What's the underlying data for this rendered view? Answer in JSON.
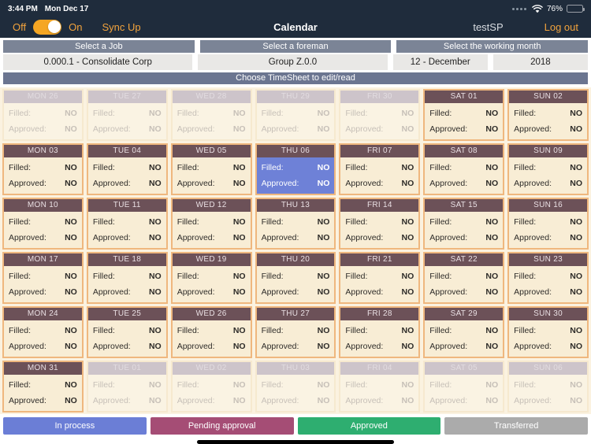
{
  "status_bar": {
    "time": "3:44 PM",
    "date": "Mon Dec 17",
    "battery_percent": "76%"
  },
  "nav_bar": {
    "off_label": "Off",
    "on_label": "On",
    "sync_label": "Sync Up",
    "title": "Calendar",
    "username": "testSP",
    "logout_label": "Log out"
  },
  "selectors": {
    "job_header": "Select a Job",
    "foreman_header": "Select a foreman",
    "month_header": "Select the working month",
    "job_value": "0.000.1 - Consolidate Corp",
    "foreman_value": "Group Z.0.0",
    "month_value": "12 - December",
    "year_value": "2018"
  },
  "choose_bar_label": "Choose TimeSheet to edit/read",
  "calendar": {
    "filled_label": "Filled:",
    "approved_label": "Approved:",
    "weeks": [
      {
        "days": [
          {
            "label": "MON 26",
            "in_month": false,
            "state": "none",
            "filled": "NO",
            "approved": "NO"
          },
          {
            "label": "TUE 27",
            "in_month": false,
            "state": "none",
            "filled": "NO",
            "approved": "NO"
          },
          {
            "label": "WED 28",
            "in_month": false,
            "state": "none",
            "filled": "NO",
            "approved": "NO"
          },
          {
            "label": "THU 29",
            "in_month": false,
            "state": "none",
            "filled": "NO",
            "approved": "NO"
          },
          {
            "label": "FRI 30",
            "in_month": false,
            "state": "none",
            "filled": "NO",
            "approved": "NO"
          },
          {
            "label": "SAT 01",
            "in_month": true,
            "state": "none",
            "filled": "NO",
            "approved": "NO"
          },
          {
            "label": "SUN 02",
            "in_month": true,
            "state": "none",
            "filled": "NO",
            "approved": "NO"
          }
        ]
      },
      {
        "days": [
          {
            "label": "MON 03",
            "in_month": true,
            "state": "none",
            "filled": "NO",
            "approved": "NO"
          },
          {
            "label": "TUE 04",
            "in_month": true,
            "state": "none",
            "filled": "NO",
            "approved": "NO"
          },
          {
            "label": "WED 05",
            "in_month": true,
            "state": "none",
            "filled": "NO",
            "approved": "NO"
          },
          {
            "label": "THU 06",
            "in_month": true,
            "state": "in_process",
            "filled": "NO",
            "approved": "NO"
          },
          {
            "label": "FRI 07",
            "in_month": true,
            "state": "none",
            "filled": "NO",
            "approved": "NO"
          },
          {
            "label": "SAT 08",
            "in_month": true,
            "state": "none",
            "filled": "NO",
            "approved": "NO"
          },
          {
            "label": "SUN 09",
            "in_month": true,
            "state": "none",
            "filled": "NO",
            "approved": "NO"
          }
        ]
      },
      {
        "days": [
          {
            "label": "MON 10",
            "in_month": true,
            "state": "none",
            "filled": "NO",
            "approved": "NO"
          },
          {
            "label": "TUE 11",
            "in_month": true,
            "state": "none",
            "filled": "NO",
            "approved": "NO"
          },
          {
            "label": "WED 12",
            "in_month": true,
            "state": "none",
            "filled": "NO",
            "approved": "NO"
          },
          {
            "label": "THU 13",
            "in_month": true,
            "state": "none",
            "filled": "NO",
            "approved": "NO"
          },
          {
            "label": "FRI 14",
            "in_month": true,
            "state": "none",
            "filled": "NO",
            "approved": "NO"
          },
          {
            "label": "SAT 15",
            "in_month": true,
            "state": "none",
            "filled": "NO",
            "approved": "NO"
          },
          {
            "label": "SUN 16",
            "in_month": true,
            "state": "none",
            "filled": "NO",
            "approved": "NO"
          }
        ]
      },
      {
        "days": [
          {
            "label": "MON 17",
            "in_month": true,
            "state": "none",
            "filled": "NO",
            "approved": "NO"
          },
          {
            "label": "TUE 18",
            "in_month": true,
            "state": "none",
            "filled": "NO",
            "approved": "NO"
          },
          {
            "label": "WED 19",
            "in_month": true,
            "state": "none",
            "filled": "NO",
            "approved": "NO"
          },
          {
            "label": "THU 20",
            "in_month": true,
            "state": "none",
            "filled": "NO",
            "approved": "NO"
          },
          {
            "label": "FRI 21",
            "in_month": true,
            "state": "none",
            "filled": "NO",
            "approved": "NO"
          },
          {
            "label": "SAT 22",
            "in_month": true,
            "state": "none",
            "filled": "NO",
            "approved": "NO"
          },
          {
            "label": "SUN 23",
            "in_month": true,
            "state": "none",
            "filled": "NO",
            "approved": "NO"
          }
        ]
      },
      {
        "days": [
          {
            "label": "MON 24",
            "in_month": true,
            "state": "none",
            "filled": "NO",
            "approved": "NO"
          },
          {
            "label": "TUE 25",
            "in_month": true,
            "state": "none",
            "filled": "NO",
            "approved": "NO"
          },
          {
            "label": "WED 26",
            "in_month": true,
            "state": "none",
            "filled": "NO",
            "approved": "NO"
          },
          {
            "label": "THU 27",
            "in_month": true,
            "state": "none",
            "filled": "NO",
            "approved": "NO"
          },
          {
            "label": "FRI 28",
            "in_month": true,
            "state": "none",
            "filled": "NO",
            "approved": "NO"
          },
          {
            "label": "SAT 29",
            "in_month": true,
            "state": "none",
            "filled": "NO",
            "approved": "NO"
          },
          {
            "label": "SUN 30",
            "in_month": true,
            "state": "none",
            "filled": "NO",
            "approved": "NO"
          }
        ]
      },
      {
        "days": [
          {
            "label": "MON 31",
            "in_month": true,
            "state": "none",
            "filled": "NO",
            "approved": "NO"
          },
          {
            "label": "TUE 01",
            "in_month": false,
            "state": "none",
            "filled": "NO",
            "approved": "NO"
          },
          {
            "label": "WED 02",
            "in_month": false,
            "state": "none",
            "filled": "NO",
            "approved": "NO"
          },
          {
            "label": "THU 03",
            "in_month": false,
            "state": "none",
            "filled": "NO",
            "approved": "NO"
          },
          {
            "label": "FRI 04",
            "in_month": false,
            "state": "none",
            "filled": "NO",
            "approved": "NO"
          },
          {
            "label": "SAT 05",
            "in_month": false,
            "state": "none",
            "filled": "NO",
            "approved": "NO"
          },
          {
            "label": "SUN 06",
            "in_month": false,
            "state": "none",
            "filled": "NO",
            "approved": "NO"
          }
        ]
      }
    ]
  },
  "legend": {
    "items": [
      {
        "label": "In process",
        "color": "#6B7ED6"
      },
      {
        "label": "Pending approval",
        "color": "#A54D75"
      },
      {
        "label": "Approved",
        "color": "#2EAE70"
      },
      {
        "label": "Transferred",
        "color": "#ABABAB"
      }
    ]
  },
  "colors": {
    "accent_orange": "#F2A33C",
    "nav_background": "#1F2C3C",
    "in_month_header": "#6C5158",
    "out_month_header": "#CDC4CA",
    "cell_border": "#EFB77E",
    "in_process_cell": "#6E81D7"
  }
}
